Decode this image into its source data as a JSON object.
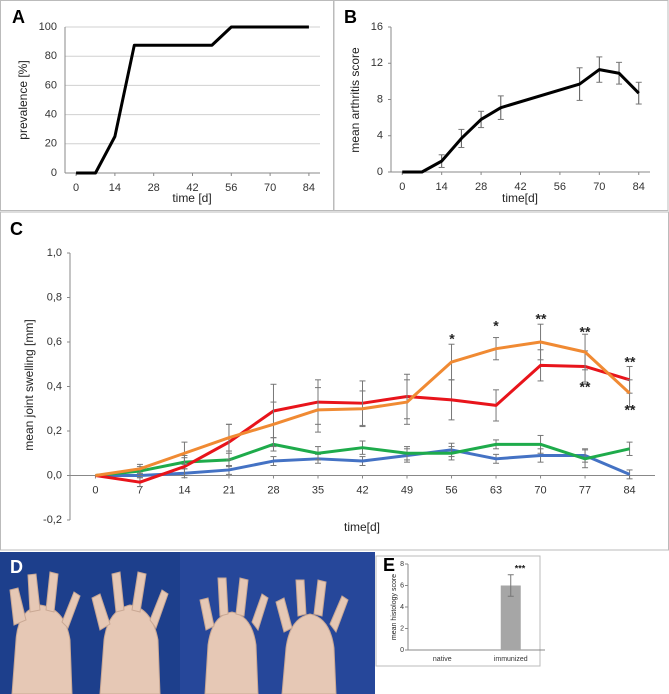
{
  "chart_data": [
    {
      "type": "line",
      "panel": "A",
      "xlabel": "time [d]",
      "ylabel": "prevalence [%]",
      "color": "#000000",
      "grid": true,
      "x": [
        0,
        7,
        14,
        21,
        28,
        35,
        42,
        49,
        56,
        63,
        70,
        77,
        84
      ],
      "values": [
        0,
        0,
        25,
        87.5,
        87.5,
        87.5,
        87.5,
        87.5,
        100,
        100,
        100,
        100,
        100
      ],
      "xlim": [
        -4,
        88
      ],
      "xticks": [
        0,
        14,
        28,
        42,
        56,
        70,
        84
      ],
      "ylim": [
        0,
        100
      ],
      "yticks": [
        0,
        20,
        40,
        60,
        80,
        100
      ]
    },
    {
      "type": "line",
      "panel": "B",
      "xlabel": "time[d]",
      "ylabel": "mean arthritis score",
      "color": "#000000",
      "grid": false,
      "x": [
        0,
        7,
        14,
        21,
        28,
        35,
        63,
        70,
        77,
        84
      ],
      "values": [
        0,
        0,
        1.2,
        3.7,
        5.8,
        7.1,
        9.7,
        11.3,
        10.9,
        8.7
      ],
      "errors": [
        null,
        null,
        0.7,
        1.0,
        0.9,
        1.3,
        1.8,
        1.4,
        1.2,
        1.2
      ],
      "xlim": [
        -4,
        88
      ],
      "xticks": [
        0,
        14,
        28,
        42,
        56,
        70,
        84
      ],
      "ylim": [
        0,
        16
      ],
      "yticks": [
        0,
        4,
        8,
        12,
        16
      ]
    },
    {
      "type": "line",
      "panel": "C",
      "xlabel": "time[d]",
      "ylabel": "mean joint swelling [mm]",
      "grid": false,
      "x": [
        0,
        7,
        14,
        21,
        28,
        35,
        42,
        49,
        56,
        63,
        70,
        77,
        84
      ],
      "series": [
        {
          "color": "#4472c4",
          "values": [
            0,
            0,
            0.01,
            0.025,
            0.065,
            0.075,
            0.065,
            0.09,
            0.115,
            0.075,
            0.09,
            0.09,
            0.005
          ],
          "errors": [
            null,
            0.01,
            0.02,
            0.02,
            0.02,
            0.02,
            0.02,
            0.03,
            0.03,
            0.02,
            0.03,
            0.03,
            0.02
          ]
        },
        {
          "color": "#1eab4b",
          "values": [
            0,
            0.02,
            0.06,
            0.07,
            0.14,
            0.1,
            0.125,
            0.1,
            0.1,
            0.14,
            0.14,
            0.075,
            0.12
          ],
          "errors": [
            null,
            0.02,
            0.03,
            0.03,
            0.03,
            0.03,
            0.03,
            0.03,
            0.03,
            0.02,
            0.04,
            0.04,
            0.03
          ]
        },
        {
          "color": "#e8141b",
          "values": [
            0,
            -0.03,
            0.04,
            0.15,
            0.29,
            0.33,
            0.325,
            0.355,
            0.34,
            0.315,
            0.495,
            0.49,
            0.43
          ],
          "errors": [
            null,
            0.02,
            0.04,
            0.08,
            0.12,
            0.1,
            0.1,
            0.1,
            0.09,
            0.07,
            0.07,
            0.07,
            0.06
          ]
        },
        {
          "color": "#f08a33",
          "values": [
            0,
            0.03,
            0.1,
            0.17,
            0.23,
            0.295,
            0.3,
            0.33,
            0.51,
            0.57,
            0.6,
            0.555,
            0.37
          ],
          "errors": [
            null,
            0.02,
            0.05,
            0.06,
            0.1,
            0.1,
            0.08,
            0.1,
            0.08,
            0.05,
            0.08,
            0.08,
            0.06
          ]
        }
      ],
      "annotations": [
        "*",
        "*",
        "**",
        "**",
        "**",
        "**",
        "**"
      ],
      "xlim": [
        -4,
        88
      ],
      "xticks": [
        0,
        7,
        14,
        21,
        28,
        35,
        42,
        49,
        56,
        63,
        70,
        77,
        84
      ],
      "ylim": [
        -0.2,
        1.0
      ],
      "yticks": [
        {
          "value": -0.2,
          "label": "-0,2"
        },
        {
          "value": 0,
          "label": "0,0"
        },
        {
          "value": 0.2,
          "label": "0,2"
        },
        {
          "value": 0.4,
          "label": "0,4"
        },
        {
          "value": 0.6,
          "label": "0,6"
        },
        {
          "value": 0.8,
          "label": "0,8"
        },
        {
          "value": 1.0,
          "label": "1,0"
        }
      ]
    },
    {
      "type": "bar",
      "panel": "E",
      "ylabel": "mean histology score",
      "color": "#a6a6a6",
      "grid": false,
      "categories": [
        "native",
        "immunized"
      ],
      "values": [
        0,
        6
      ],
      "errors": [
        null,
        1
      ],
      "annotations": [
        "***"
      ],
      "ylim": [
        0,
        8
      ],
      "yticks": [
        0,
        2,
        4,
        6,
        8
      ]
    }
  ],
  "photo": {
    "panel": "D"
  }
}
